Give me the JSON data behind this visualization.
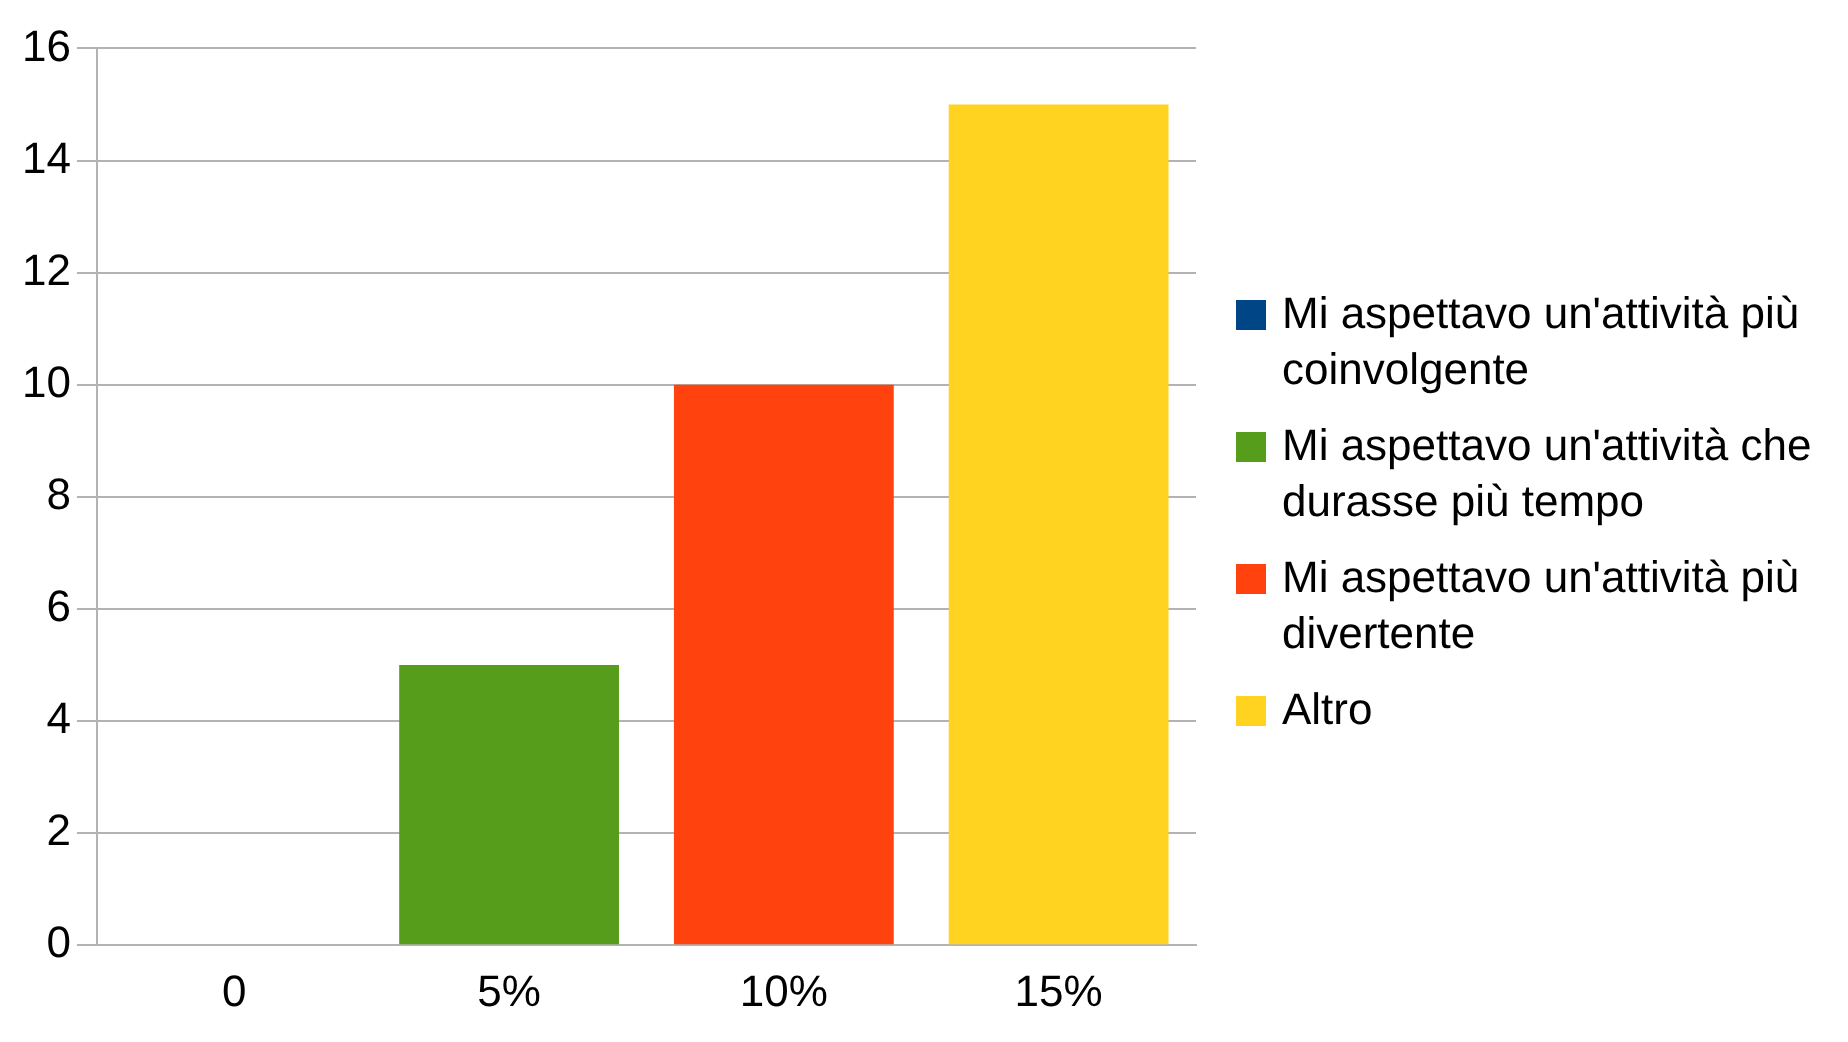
{
  "chart_data": {
    "type": "bar",
    "categories": [
      "0",
      "5%",
      "10%",
      "15%"
    ],
    "series": [
      {
        "name": "Mi aspettavo un'attività più coinvolgente",
        "color": "#004586",
        "values": [
          0,
          null,
          null,
          null
        ]
      },
      {
        "name": "Mi aspettavo un'attività che durasse più tempo",
        "color": "#579d1c",
        "values": [
          null,
          5,
          null,
          null
        ]
      },
      {
        "name": "Mi aspettavo un'attività più divertente",
        "color": "#ff420e",
        "values": [
          null,
          null,
          10,
          null
        ]
      },
      {
        "name": "Altro",
        "color": "#ffd320",
        "values": [
          null,
          null,
          null,
          15
        ]
      }
    ],
    "ylim": [
      0,
      16
    ],
    "yticks": [
      0,
      2,
      4,
      6,
      8,
      10,
      12,
      14,
      16
    ],
    "grid": "y",
    "legend": "right"
  }
}
